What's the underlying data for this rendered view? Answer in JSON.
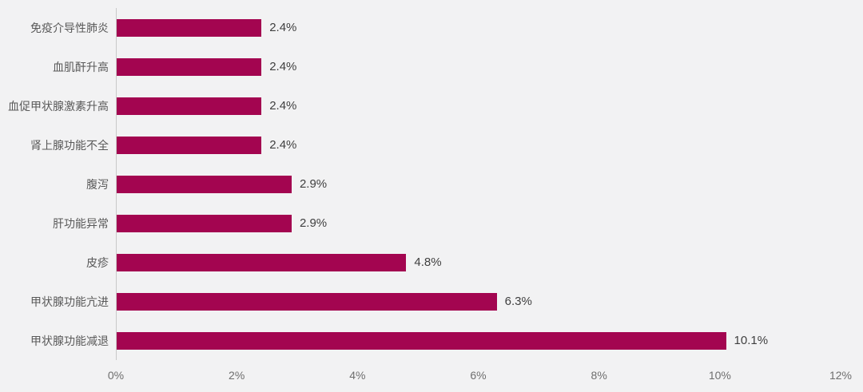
{
  "chart_data": {
    "type": "bar",
    "orientation": "horizontal",
    "title": "",
    "xlabel": "",
    "ylabel": "",
    "categories": [
      "免疫介导性肺炎",
      "血肌酐升高",
      "血促甲状腺激素升高",
      "肾上腺功能不全",
      "腹泻",
      "肝功能异常",
      "皮疹",
      "甲状腺功能亢进",
      "甲状腺功能减退"
    ],
    "values": [
      2.4,
      2.4,
      2.4,
      2.4,
      2.9,
      2.9,
      4.8,
      6.3,
      10.1
    ],
    "value_labels": [
      "2.4%",
      "2.4%",
      "2.4%",
      "2.4%",
      "2.9%",
      "2.9%",
      "4.8%",
      "6.3%",
      "10.1%"
    ],
    "x_ticks": [
      "0%",
      "2%",
      "4%",
      "6%",
      "8%",
      "10%",
      "12%"
    ],
    "xlim": [
      0,
      12
    ],
    "grid": false,
    "legend": "none"
  },
  "colors": {
    "bar": "#A30550",
    "background": "#F2F2F3",
    "axis_line": "#C9C9C9",
    "category_text": "#595959",
    "value_text": "#3F3F3F",
    "tick_text": "#6E6E6E"
  }
}
